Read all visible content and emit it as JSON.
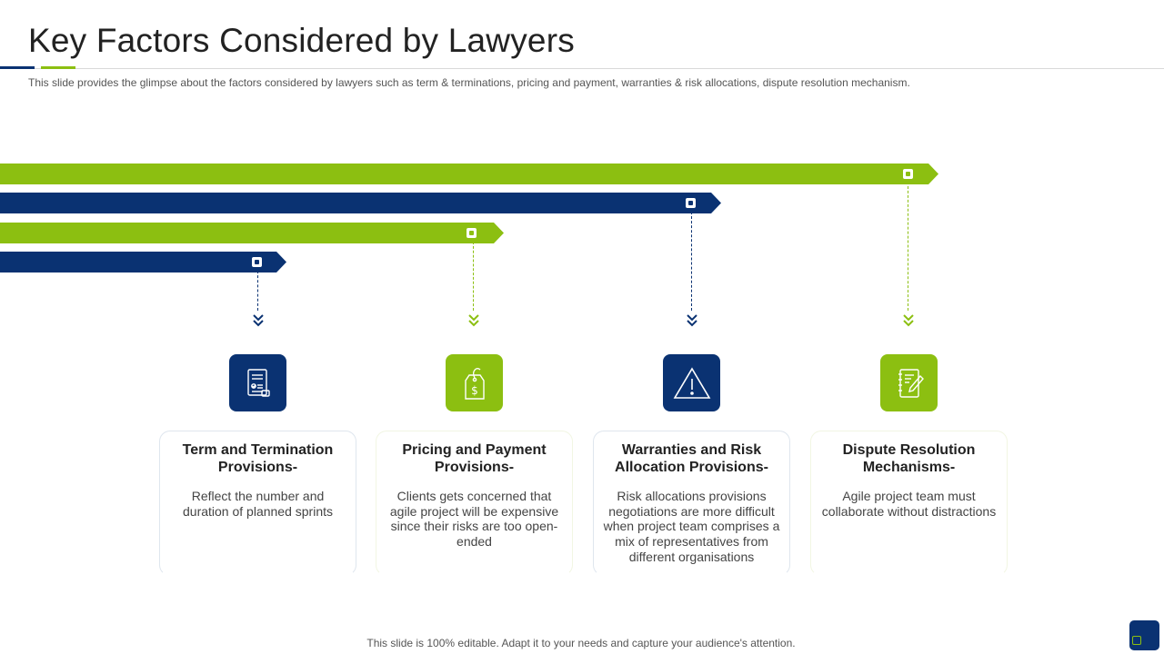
{
  "header": {
    "title": "Key Factors Considered by Lawyers",
    "subtitle": "This slide provides the glimpse about the factors considered by lawyers such as term & terminations, pricing and payment, warranties & risk allocations, dispute resolution mechanism."
  },
  "colors": {
    "navy": "#0a3272",
    "green": "#8cbf11"
  },
  "factors": [
    {
      "icon": "contract-document-icon",
      "color": "navy",
      "title": "Term and Termination Provisions-",
      "body": "Reflect the number and duration of planned sprints"
    },
    {
      "icon": "price-tag-dollar-icon",
      "color": "green",
      "title": "Pricing and Payment Provisions-",
      "body": "Clients gets concerned that agile project will be expensive since their risks are too open-ended"
    },
    {
      "icon": "warning-triangle-icon",
      "color": "navy",
      "title": "Warranties and Risk Allocation Provisions-",
      "body": "Risk allocations provisions negotiations are more difficult when project team comprises a mix  of representatives from different organisations"
    },
    {
      "icon": "notebook-pencil-icon",
      "color": "green",
      "title": "Dispute Resolution Mechanisms-",
      "body": "Agile project team must collaborate without distractions"
    }
  ],
  "footer": {
    "note": "This slide is 100% editable. Adapt it to your needs and capture your audience's attention."
  }
}
